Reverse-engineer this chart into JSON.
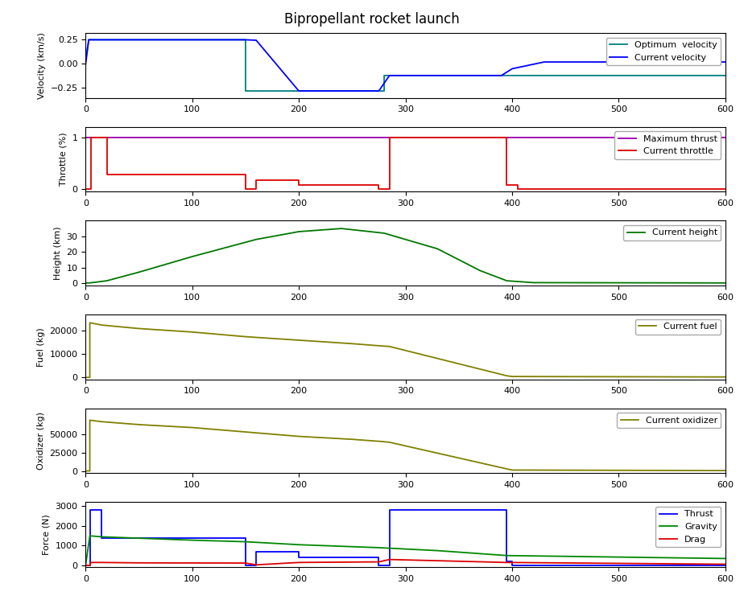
{
  "title": "Bipropellant rocket launch",
  "subplots": [
    {
      "ylabel": "Velocity (km/s)",
      "ylim": [
        -0.35,
        0.32
      ],
      "yticks": [
        -0.25,
        0.0,
        0.25
      ],
      "series": [
        {
          "label": "Optimum  velocity",
          "color": "#008080",
          "x": [
            0,
            3,
            10,
            150,
            150,
            200,
            280,
            280,
            390,
            600
          ],
          "y": [
            0.05,
            0.25,
            0.25,
            0.25,
            -0.28,
            -0.28,
            -0.28,
            -0.12,
            -0.12,
            -0.12
          ]
        },
        {
          "label": "Current velocity",
          "color": "#0000ff",
          "x": [
            0,
            3,
            10,
            150,
            160,
            200,
            275,
            285,
            390,
            400,
            430,
            600
          ],
          "y": [
            -0.01,
            0.25,
            0.25,
            0.25,
            0.245,
            -0.28,
            -0.28,
            -0.12,
            -0.12,
            -0.05,
            0.02,
            0.02
          ]
        }
      ],
      "legend_loc": "upper right"
    },
    {
      "ylabel": "Throttle (%)",
      "ylim": [
        -0.05,
        1.2
      ],
      "yticks": [
        0,
        1
      ],
      "series": [
        {
          "label": "Maximum thrust",
          "color": "#9900aa",
          "x": [
            0,
            600
          ],
          "y": [
            1.0,
            1.0
          ]
        },
        {
          "label": "Current throttle",
          "color": "#dd0000",
          "x": [
            0,
            5,
            5,
            20,
            20,
            150,
            150,
            160,
            160,
            200,
            200,
            275,
            275,
            285,
            285,
            395,
            395,
            405,
            405,
            600
          ],
          "y": [
            0.0,
            0.0,
            1.0,
            1.0,
            0.28,
            0.28,
            0.0,
            0.0,
            0.17,
            0.17,
            0.07,
            0.07,
            0.0,
            0.0,
            1.0,
            1.0,
            0.07,
            0.07,
            0.0,
            0.0
          ]
        }
      ],
      "legend_loc": "upper right"
    },
    {
      "ylabel": "Height (km)",
      "ylim": [
        -1.5,
        40
      ],
      "yticks": [
        0,
        10,
        20,
        30
      ],
      "series": [
        {
          "label": "Current height",
          "color": "#007700",
          "x": [
            0,
            5,
            20,
            50,
            100,
            160,
            200,
            240,
            280,
            330,
            370,
            395,
            420,
            600
          ],
          "y": [
            0.0,
            0.2,
            1.5,
            7.0,
            17,
            28,
            33,
            35,
            32,
            22,
            8,
            1.5,
            0.3,
            0.1
          ]
        }
      ],
      "legend_loc": "upper right"
    },
    {
      "ylabel": "Fuel (kg)",
      "ylim": [
        -800,
        27000
      ],
      "yticks": [
        0,
        10000,
        20000
      ],
      "series": [
        {
          "label": "Current fuel",
          "color": "#808000",
          "x": [
            0,
            4,
            4,
            15,
            50,
            100,
            150,
            200,
            250,
            278,
            285,
            395,
            400,
            600
          ],
          "y": [
            0.0,
            0.0,
            23500,
            22500,
            21000,
            19500,
            17500,
            16000,
            14500,
            13500,
            13300,
            700,
            400,
            200
          ]
        }
      ],
      "legend_loc": "upper right"
    },
    {
      "ylabel": "Oxidizer (kg)",
      "ylim": [
        -3000,
        85000
      ],
      "yticks": [
        0,
        25000,
        50000
      ],
      "series": [
        {
          "label": "Current oxidizer",
          "color": "#808000",
          "x": [
            0,
            4,
            4,
            15,
            50,
            100,
            150,
            200,
            250,
            278,
            285,
            395,
            400,
            600
          ],
          "y": [
            0.0,
            0.0,
            69000,
            67000,
            63000,
            59000,
            53000,
            47000,
            43000,
            40000,
            39000,
            2800,
            1200,
            500
          ]
        }
      ],
      "legend_loc": "upper right"
    },
    {
      "ylabel": "Force (N)",
      "ylim": [
        -80,
        3200
      ],
      "yticks": [
        0,
        1000,
        2000,
        3000
      ],
      "series": [
        {
          "label": "Thrust",
          "color": "#0000ff",
          "x": [
            0,
            4,
            4,
            15,
            15,
            150,
            150,
            160,
            160,
            200,
            200,
            275,
            275,
            285,
            285,
            395,
            395,
            400,
            400,
            600
          ],
          "y": [
            0,
            0,
            2800,
            2800,
            1400,
            1400,
            0,
            0,
            700,
            700,
            400,
            400,
            0,
            0,
            2800,
            2800,
            200,
            200,
            0,
            0
          ]
        },
        {
          "label": "Gravity",
          "color": "#008800",
          "x": [
            0,
            4,
            15,
            50,
            100,
            150,
            200,
            275,
            330,
            395,
            600
          ],
          "y": [
            0,
            1500,
            1450,
            1380,
            1280,
            1200,
            1050,
            900,
            750,
            500,
            350
          ]
        },
        {
          "label": "Drag",
          "color": "#dd0000",
          "x": [
            0,
            4,
            5,
            15,
            50,
            150,
            160,
            200,
            275,
            285,
            395,
            600
          ],
          "y": [
            0,
            0,
            150,
            150,
            130,
            120,
            30,
            150,
            180,
            300,
            150,
            60
          ]
        }
      ],
      "legend_loc": "upper right"
    }
  ],
  "xlim": [
    0,
    600
  ],
  "xticks": [
    0,
    100,
    200,
    300,
    400,
    500,
    600
  ],
  "background_color": "#ffffff",
  "title_fontsize": 12,
  "tick_labelsize": 8,
  "label_fontsize": 8
}
